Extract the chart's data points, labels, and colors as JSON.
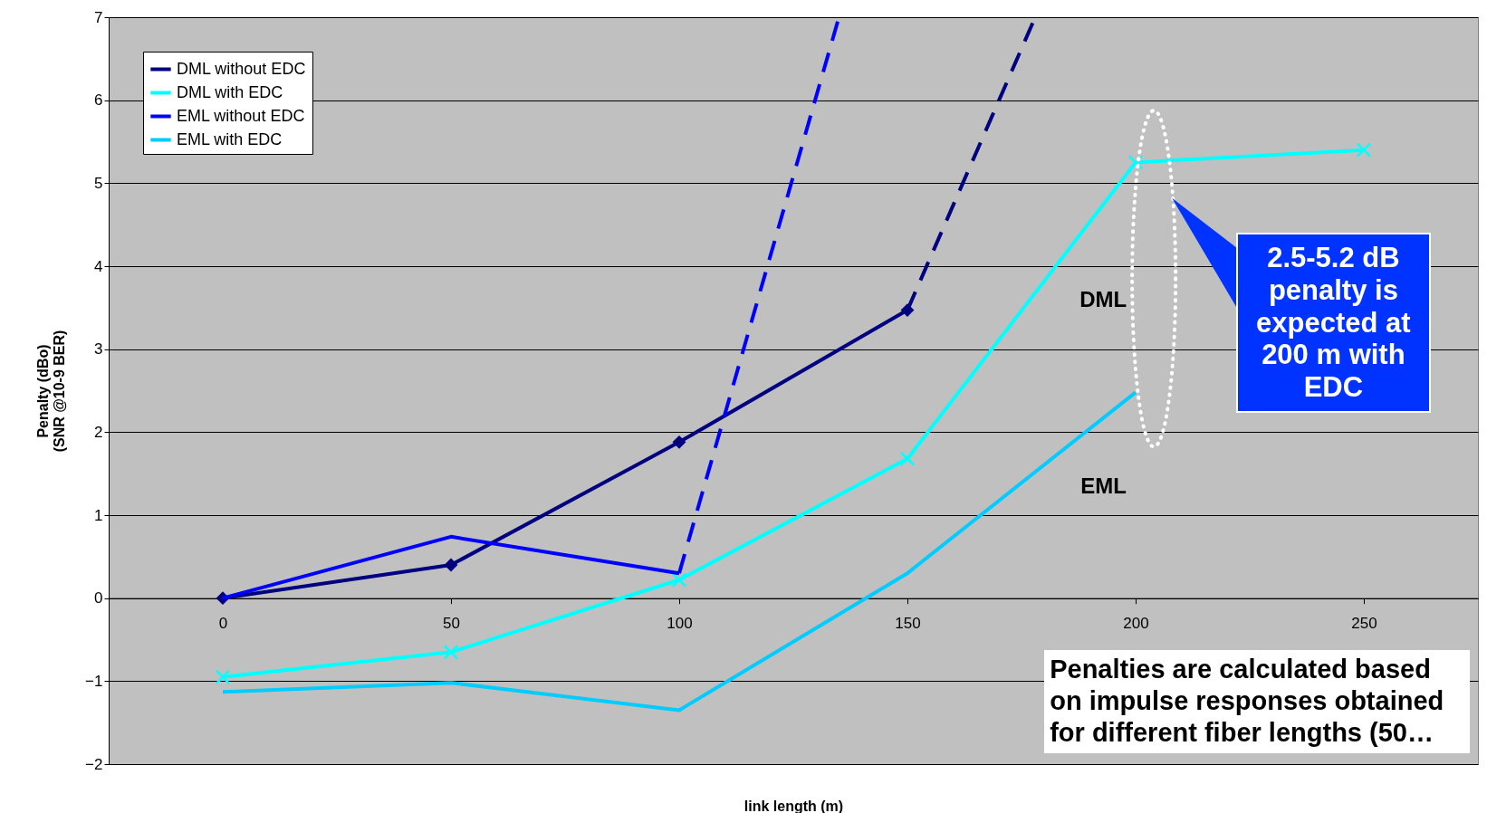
{
  "chart_data": {
    "type": "line",
    "xlabel": "link length (m)",
    "ylabel": "Penalty (dBo)\n(SNR @10-9 BER)",
    "xlim": [
      -25,
      275
    ],
    "xticks": [
      0,
      50,
      100,
      150,
      200,
      250
    ],
    "ylim": [
      -2,
      7
    ],
    "yticks": [
      -2,
      -1,
      0,
      1,
      2,
      3,
      4,
      5,
      6,
      7
    ],
    "grid": "y",
    "legend": "top left",
    "series": [
      {
        "name": "DML without EDC",
        "color": "#000080",
        "x": [
          0,
          50,
          100,
          150
        ],
        "values": [
          0,
          0.4,
          1.88,
          3.47
        ],
        "marker": "diamond",
        "line_style": "solid"
      },
      {
        "name": "DML with EDC",
        "color": "#00ffff",
        "x": [
          0,
          50,
          100,
          150,
          200,
          250
        ],
        "values": [
          -0.95,
          -0.65,
          0.22,
          1.68,
          5.25,
          5.4
        ],
        "marker": "cross",
        "line_style": "solid"
      },
      {
        "name": "EML without EDC",
        "color": "#0000ff",
        "x": [
          0,
          50,
          100
        ],
        "values": [
          0,
          0.74,
          0.3
        ],
        "marker": "none",
        "line_style": "solid"
      },
      {
        "name": "EML with EDC",
        "color": "#00ccff",
        "x": [
          0,
          50,
          100,
          150,
          200
        ],
        "values": [
          -1.13,
          -1.02,
          -1.35,
          0.3,
          2.48
        ],
        "marker": "none",
        "line_style": "solid"
      },
      {
        "color": "#0000ff",
        "x": [
          100,
          135
        ],
        "values": [
          0.3,
          7
        ],
        "marker": "none",
        "line_style": "dashed"
      },
      {
        "color": "#000080",
        "x": [
          150,
          178
        ],
        "values": [
          3.47,
          7
        ],
        "marker": "none",
        "line_style": "dashed"
      }
    ],
    "annotations": [
      "DML",
      "EML",
      "2.5-5.2 dB penalty is expected at 200 m with EDC",
      "Penalties are calculated based on impulse responses obtained for different fiber lengths (50…"
    ]
  }
}
